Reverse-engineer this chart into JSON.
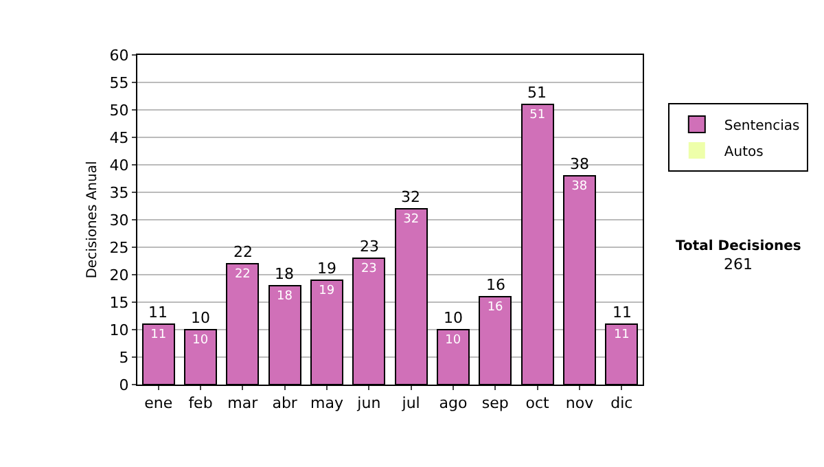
{
  "chart_data": {
    "type": "bar",
    "ylabel": "Decisiones Anual",
    "categories": [
      "ene",
      "feb",
      "mar",
      "abr",
      "may",
      "jun",
      "jul",
      "ago",
      "sep",
      "oct",
      "nov",
      "dic"
    ],
    "series": [
      {
        "name": "Sentencias",
        "color": "#d070b8",
        "values": [
          11,
          10,
          22,
          18,
          19,
          23,
          32,
          10,
          16,
          51,
          38,
          11
        ],
        "value_labels": [
          "11",
          "10",
          "22",
          "18",
          "19",
          "23",
          "32",
          "10",
          "16",
          "51",
          "38",
          "11"
        ]
      },
      {
        "name": "Autos",
        "color": "#eeffaa",
        "values": [
          0,
          0,
          0,
          0,
          0,
          0,
          0,
          0,
          0,
          0,
          0,
          0
        ]
      }
    ],
    "stacked": true,
    "totals": [
      "11",
      "10",
      "22",
      "18",
      "19",
      "23",
      "32",
      "10",
      "16",
      "51",
      "38",
      "11"
    ],
    "ylim": [
      0,
      60
    ],
    "yticks": [
      0,
      5,
      10,
      15,
      20,
      25,
      30,
      35,
      40,
      45,
      50,
      55,
      60
    ],
    "grid": "y",
    "legend": "right",
    "annotations": [
      "Total Decisiones",
      "261"
    ]
  }
}
